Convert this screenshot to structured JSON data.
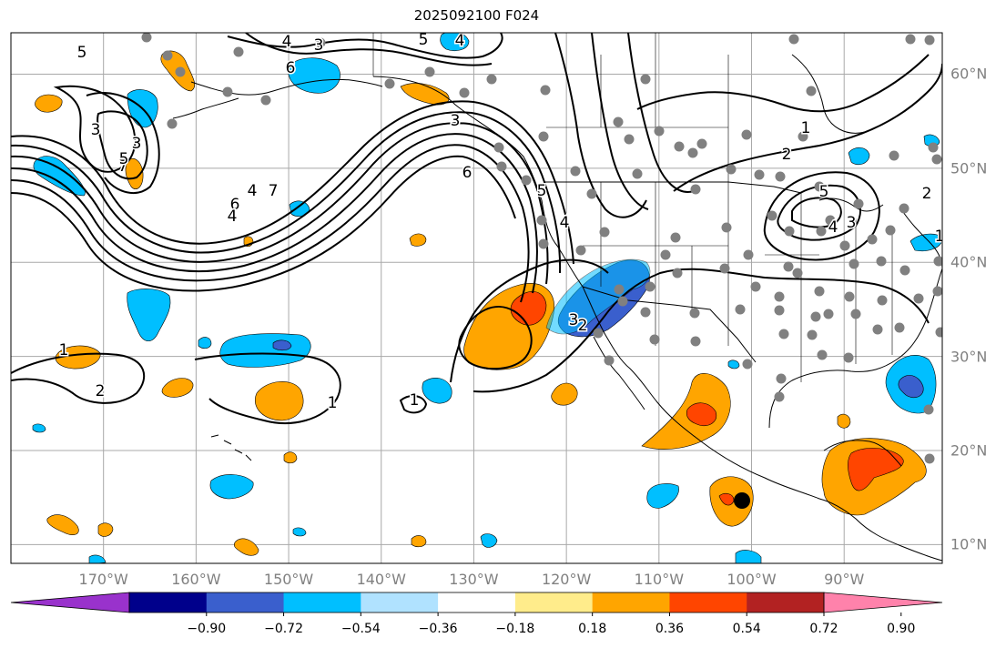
{
  "title": "2025092100 F024",
  "map": {
    "lon_labels": [
      "170°W",
      "160°W",
      "150°W",
      "140°W",
      "130°W",
      "120°W",
      "110°W",
      "100°W",
      "90°W"
    ],
    "lat_labels": [
      "60°N",
      "50°N",
      "40°N",
      "30°N",
      "20°N",
      "10°N"
    ],
    "lon_ticks": [
      -170,
      -160,
      -150,
      -140,
      -130,
      -120,
      -110,
      -100,
      -90
    ],
    "lat_ticks": [
      60,
      50,
      40,
      30,
      20,
      10
    ],
    "lon_range": [
      -180,
      -79.4
    ],
    "lat_range": [
      8,
      64.4
    ],
    "contour_labels": [
      "5",
      "4",
      "3",
      "4",
      "5",
      "3",
      "6",
      "4",
      "6",
      "7",
      "5",
      "3",
      "4",
      "7",
      "3",
      "6",
      "5",
      "4",
      "3",
      "2",
      "1",
      "5",
      "4",
      "3",
      "2",
      "2",
      "1",
      "1",
      "1",
      "2",
      "1"
    ],
    "marker_color": "#000000",
    "station_dot_color": "#808080"
  },
  "colorbar": {
    "tick_labels": [
      "−0.90",
      "−0.72",
      "−0.54",
      "−0.36",
      "−0.18",
      "0.18",
      "0.36",
      "0.54",
      "0.72",
      "0.90"
    ],
    "colors": [
      "#9932cc",
      "#00008b",
      "#3a5fcd",
      "#00bfff",
      "#b0e2ff",
      "#ffffff",
      "#ffec8b",
      "#ffa500",
      "#ff4500",
      "#b22222",
      "#ff82ab"
    ]
  }
}
